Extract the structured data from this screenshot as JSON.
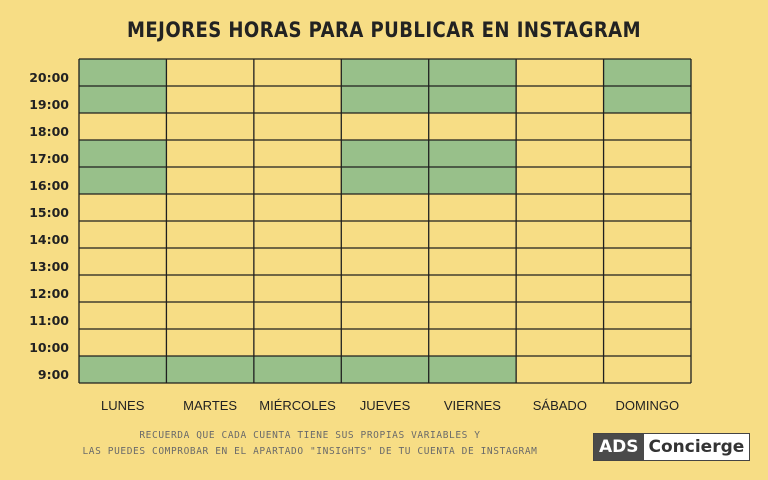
{
  "chart_data": {
    "type": "heatmap",
    "title": "MEJORES HORAS PARA PUBLICAR EN INSTAGRAM",
    "x_categories": [
      "LUNES",
      "MARTES",
      "MIÉRCOLES",
      "JUEVES",
      "VIERNES",
      "SÁBADO",
      "DOMINGO"
    ],
    "y_categories": [
      "20:00",
      "19:00",
      "18:00",
      "17:00",
      "16:00",
      "15:00",
      "14:00",
      "13:00",
      "12:00",
      "11:00",
      "10:00",
      "9:00"
    ],
    "highlighted": [
      {
        "day": "LUNES",
        "hours": [
          "20:00",
          "19:00",
          "17:00",
          "16:00",
          "9:00"
        ]
      },
      {
        "day": "MARTES",
        "hours": [
          "9:00"
        ]
      },
      {
        "day": "MIÉRCOLES",
        "hours": [
          "9:00"
        ]
      },
      {
        "day": "JUEVES",
        "hours": [
          "20:00",
          "19:00",
          "17:00",
          "16:00",
          "9:00"
        ]
      },
      {
        "day": "VIERNES",
        "hours": [
          "20:00",
          "19:00",
          "17:00",
          "16:00",
          "9:00"
        ]
      },
      {
        "day": "SÁBADO",
        "hours": []
      },
      {
        "day": "DOMINGO",
        "hours": [
          "20:00",
          "19:00"
        ]
      }
    ],
    "colors": {
      "background": "#f7dd85",
      "highlight": "#98c08a",
      "grid": "#1f1f1f"
    }
  },
  "note": {
    "line1": "RECUERDA QUE CADA CUENTA TIENE SUS PROPIAS VARIABLES Y",
    "line2": "LAS PUEDES COMPROBAR EN EL APARTADO \"INSIGHTS\" DE TU CUENTA DE INSTAGRAM"
  },
  "logo": {
    "part1": "ADS",
    "part2": "Concierge"
  }
}
